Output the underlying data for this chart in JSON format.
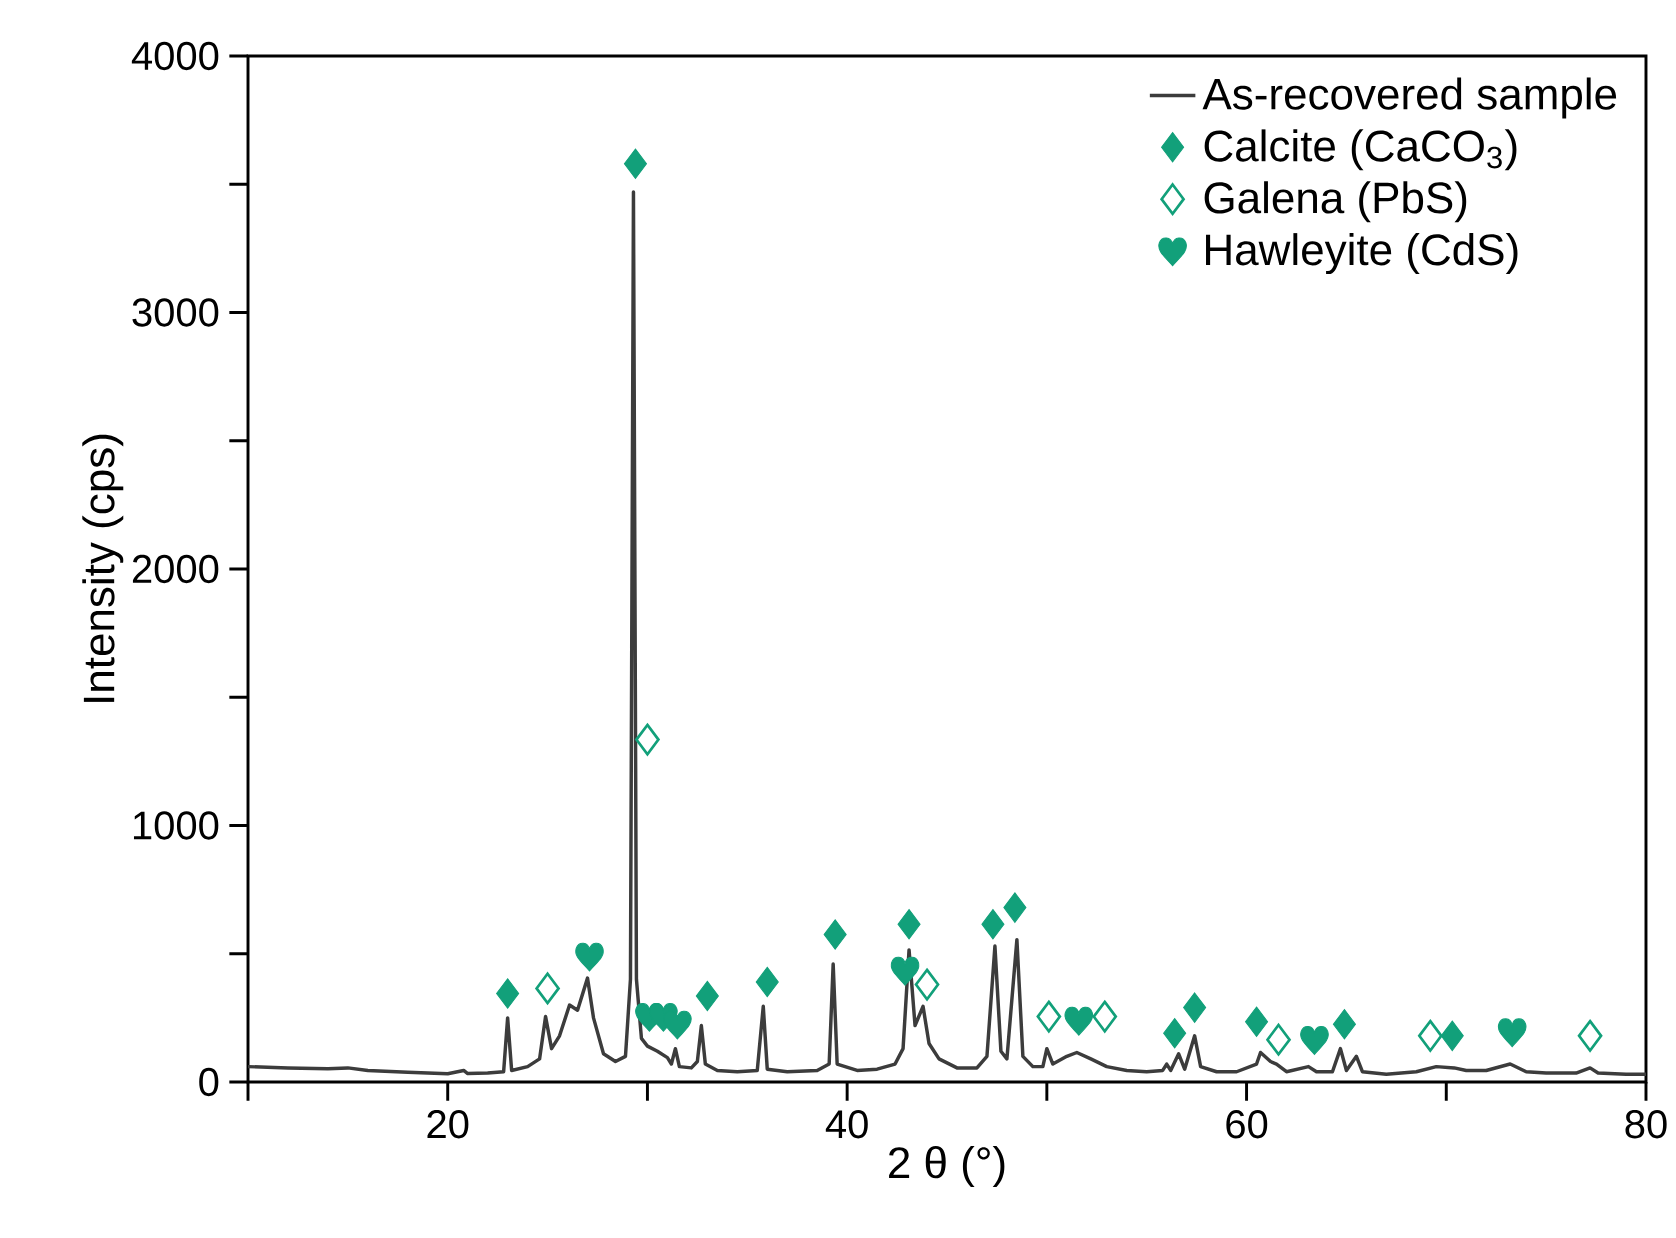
{
  "chart_data": {
    "type": "line",
    "xlabel": "2 θ (°)",
    "ylabel": "Intensity (cps)",
    "xlim": [
      10,
      80
    ],
    "ylim": [
      0,
      4000
    ],
    "xticks": [
      {
        "value": 10,
        "label": null
      },
      20,
      {
        "value": 30,
        "label": null
      },
      40,
      {
        "value": 50,
        "label": null
      },
      60,
      {
        "value": 70,
        "label": null
      },
      80
    ],
    "yticks": [
      0,
      {
        "value": 500,
        "label": null
      },
      1000,
      {
        "value": 1500,
        "label": null
      },
      2000,
      {
        "value": 2500,
        "label": null
      },
      3000,
      {
        "value": 3500,
        "label": null
      },
      4000
    ],
    "legend": "top right",
    "series": [
      {
        "name": "As-recovered sample",
        "color": "#3c3c3c",
        "marker": "none",
        "line_style": "solid",
        "x": [
          10,
          12,
          14,
          15,
          16,
          18,
          20,
          20.8,
          21,
          22,
          22.8,
          23.0,
          23.2,
          24,
          24.6,
          24.9,
          25.2,
          25.6,
          26.1,
          26.5,
          27.0,
          27.3,
          27.8,
          28.4,
          28.9,
          29.15,
          29.3,
          29.45,
          29.7,
          30.0,
          30.5,
          31.0,
          31.2,
          31.4,
          31.6,
          32.2,
          32.5,
          32.7,
          32.9,
          33.5,
          34.5,
          35.5,
          35.8,
          36.0,
          37,
          38.5,
          39.1,
          39.3,
          39.5,
          40.5,
          41.5,
          42.4,
          42.8,
          43.1,
          43.4,
          43.8,
          44.1,
          44.6,
          45.5,
          46.5,
          47.0,
          47.4,
          47.7,
          48.0,
          48.5,
          48.8,
          49.3,
          49.8,
          50.0,
          50.3,
          51.0,
          51.5,
          52.2,
          53,
          54,
          55,
          55.8,
          56.0,
          56.2,
          56.6,
          56.9,
          57.4,
          57.7,
          58.5,
          59.5,
          60.5,
          60.7,
          61.2,
          61.5,
          62,
          63.1,
          63.5,
          64.3,
          64.7,
          65.0,
          65.5,
          65.8,
          67,
          68.5,
          69.5,
          70.4,
          71,
          72,
          73.2,
          74,
          75,
          76.5,
          77.2,
          77.6,
          79,
          80
        ],
        "values": [
          60,
          55,
          52,
          55,
          45,
          38,
          32,
          45,
          33,
          35,
          40,
          250,
          45,
          60,
          90,
          255,
          130,
          180,
          300,
          280,
          405,
          250,
          110,
          80,
          100,
          400,
          3470,
          400,
          170,
          140,
          120,
          95,
          70,
          130,
          60,
          55,
          80,
          220,
          70,
          45,
          40,
          45,
          295,
          50,
          40,
          45,
          70,
          460,
          70,
          45,
          50,
          70,
          130,
          515,
          220,
          295,
          150,
          90,
          55,
          55,
          100,
          530,
          120,
          90,
          555,
          100,
          60,
          60,
          130,
          70,
          100,
          115,
          90,
          60,
          45,
          40,
          45,
          70,
          45,
          110,
          50,
          180,
          60,
          40,
          40,
          70,
          115,
          80,
          70,
          40,
          60,
          40,
          40,
          130,
          45,
          100,
          40,
          30,
          40,
          60,
          55,
          45,
          45,
          70,
          40,
          35,
          35,
          55,
          35,
          30,
          30
        ]
      },
      {
        "name": "Calcite (CaCO$_{3}$)",
        "type": "scatter",
        "color": "#12a07a",
        "marker": "diamond",
        "x": [
          23.0,
          29.4,
          33.0,
          36.0,
          39.4,
          43.1,
          47.3,
          48.4,
          56.4,
          57.4,
          60.5,
          64.9,
          70.3
        ],
        "values": [
          345,
          3580,
          335,
          390,
          575,
          615,
          615,
          680,
          190,
          290,
          235,
          225,
          180
        ]
      },
      {
        "name": "Galena (PbS)",
        "type": "scatter",
        "color": "#12a07a",
        "marker": "diamond open",
        "x": [
          25.0,
          30.0,
          44.0,
          50.1,
          52.9,
          61.6,
          69.2,
          77.2
        ],
        "values": [
          365,
          1335,
          380,
          255,
          255,
          165,
          180,
          180
        ]
      },
      {
        "name": "Hawleyite (CdS)",
        "type": "scatter",
        "color": "#12a07a",
        "x": [
          27.1,
          30.1,
          30.8,
          31.5,
          42.9,
          51.6,
          63.4,
          73.3
        ],
        "values": [
          490,
          255,
          255,
          225,
          435,
          240,
          165,
          195
        ]
      }
    ]
  }
}
